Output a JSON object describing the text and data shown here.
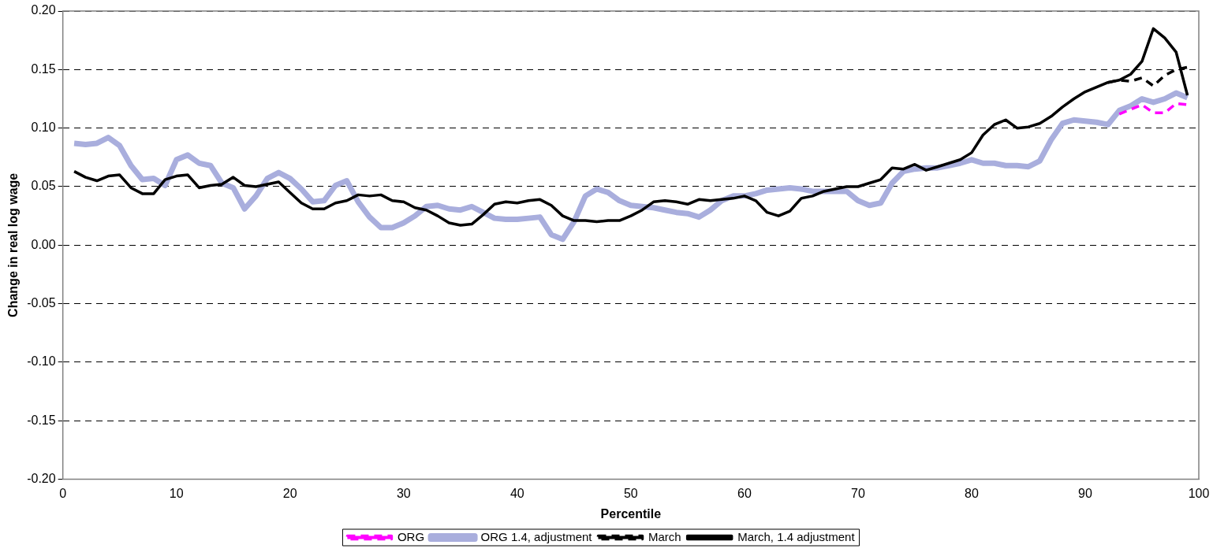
{
  "chart_data": {
    "type": "line",
    "xlabel": "Percentile",
    "ylabel": "Change in real log wage",
    "x": [
      1,
      2,
      3,
      4,
      5,
      6,
      7,
      8,
      9,
      10,
      11,
      12,
      13,
      14,
      15,
      16,
      17,
      18,
      19,
      20,
      21,
      22,
      23,
      24,
      25,
      26,
      27,
      28,
      29,
      30,
      31,
      32,
      33,
      34,
      35,
      36,
      37,
      38,
      39,
      40,
      41,
      42,
      43,
      44,
      45,
      46,
      47,
      48,
      49,
      50,
      51,
      52,
      53,
      54,
      55,
      56,
      57,
      58,
      59,
      60,
      61,
      62,
      63,
      64,
      65,
      66,
      67,
      68,
      69,
      70,
      71,
      72,
      73,
      74,
      75,
      76,
      77,
      78,
      79,
      80,
      81,
      82,
      83,
      84,
      85,
      86,
      87,
      88,
      89,
      90,
      91,
      92,
      93,
      94,
      95,
      96,
      97,
      98,
      99
    ],
    "xlim": [
      0,
      100
    ],
    "xticks": [
      0,
      10,
      20,
      30,
      40,
      50,
      60,
      70,
      80,
      90,
      100
    ],
    "ylim": [
      -0.2,
      0.2
    ],
    "yticks": [
      {
        "value": -0.2,
        "label": "-0.20"
      },
      {
        "value": -0.15,
        "label": "-0.15"
      },
      {
        "value": -0.1,
        "label": "-0.10"
      },
      {
        "value": -0.05,
        "label": "-0.05"
      },
      {
        "value": 0,
        "label": "0.00"
      },
      {
        "value": 0.05,
        "label": "0.05"
      },
      {
        "value": 0.1,
        "label": "0.10"
      },
      {
        "value": 0.15,
        "label": "0.15"
      },
      {
        "value": 0.2,
        "label": "0.20"
      }
    ],
    "grid": "y",
    "legend": "bottom",
    "marker": "none",
    "series": [
      {
        "name": "ORG",
        "color": "#ff00ff",
        "line_style": "dashed",
        "values": [
          null,
          null,
          null,
          null,
          null,
          null,
          null,
          null,
          null,
          null,
          null,
          null,
          null,
          null,
          null,
          null,
          null,
          null,
          null,
          null,
          null,
          null,
          null,
          null,
          null,
          null,
          null,
          null,
          null,
          null,
          null,
          null,
          null,
          null,
          null,
          null,
          null,
          null,
          null,
          null,
          null,
          null,
          null,
          null,
          null,
          null,
          null,
          null,
          null,
          null,
          null,
          null,
          null,
          null,
          null,
          null,
          null,
          null,
          null,
          null,
          null,
          null,
          null,
          null,
          null,
          null,
          null,
          null,
          null,
          null,
          null,
          null,
          null,
          null,
          null,
          null,
          null,
          null,
          null,
          null,
          null,
          null,
          null,
          null,
          null,
          null,
          null,
          null,
          null,
          null,
          null,
          null,
          0.112,
          0.116,
          0.12,
          0.113,
          0.113,
          0.121,
          0.12
        ]
      },
      {
        "name": "ORG 1.4, adjustment",
        "color": "#a9aedd",
        "line_style": "solid",
        "values": [
          0.087,
          0.086,
          0.087,
          0.092,
          0.085,
          0.068,
          0.056,
          0.057,
          0.051,
          0.073,
          0.077,
          0.07,
          0.068,
          0.053,
          0.049,
          0.031,
          0.042,
          0.057,
          0.062,
          0.057,
          0.048,
          0.037,
          0.038,
          0.051,
          0.055,
          0.037,
          0.024,
          0.015,
          0.015,
          0.019,
          0.025,
          0.033,
          0.034,
          0.031,
          0.03,
          0.033,
          0.028,
          0.023,
          0.022,
          0.022,
          0.023,
          0.024,
          0.009,
          0.005,
          0.02,
          0.042,
          0.048,
          0.045,
          0.038,
          0.034,
          0.033,
          0.032,
          0.03,
          0.028,
          0.027,
          0.024,
          0.03,
          0.038,
          0.042,
          0.042,
          0.044,
          0.047,
          0.048,
          0.049,
          0.048,
          0.046,
          0.046,
          0.046,
          0.046,
          0.038,
          0.034,
          0.036,
          0.053,
          0.063,
          0.065,
          0.066,
          0.066,
          0.068,
          0.07,
          0.073,
          0.07,
          0.07,
          0.068,
          0.068,
          0.067,
          0.072,
          0.09,
          0.104,
          0.107,
          0.106,
          0.105,
          0.103,
          0.115,
          0.119,
          0.125,
          0.122,
          0.125,
          0.13,
          0.126
        ]
      },
      {
        "name": "March",
        "color": "#000000",
        "line_style": "dashed",
        "values": [
          null,
          null,
          null,
          null,
          null,
          null,
          null,
          null,
          null,
          null,
          null,
          null,
          null,
          null,
          null,
          null,
          null,
          null,
          null,
          null,
          null,
          null,
          null,
          null,
          null,
          null,
          null,
          null,
          null,
          null,
          null,
          null,
          null,
          null,
          null,
          null,
          null,
          null,
          null,
          null,
          null,
          null,
          null,
          null,
          null,
          null,
          null,
          null,
          null,
          null,
          null,
          null,
          null,
          null,
          null,
          null,
          null,
          null,
          null,
          null,
          null,
          null,
          null,
          null,
          null,
          null,
          null,
          null,
          null,
          null,
          null,
          null,
          null,
          null,
          null,
          null,
          null,
          null,
          null,
          null,
          null,
          null,
          null,
          null,
          null,
          null,
          null,
          null,
          null,
          null,
          null,
          0.139,
          0.141,
          0.14,
          0.143,
          0.136,
          0.145,
          0.15,
          0.152
        ]
      },
      {
        "name": "March, 1.4 adjustment",
        "color": "#000000",
        "line_style": "solid",
        "values": [
          0.063,
          0.058,
          0.055,
          0.059,
          0.06,
          0.049,
          0.044,
          0.044,
          0.056,
          0.059,
          0.06,
          0.049,
          0.051,
          0.052,
          0.058,
          0.051,
          0.05,
          0.052,
          0.054,
          0.045,
          0.036,
          0.031,
          0.031,
          0.036,
          0.038,
          0.043,
          0.042,
          0.043,
          0.038,
          0.037,
          0.032,
          0.03,
          0.025,
          0.019,
          0.017,
          0.018,
          0.026,
          0.035,
          0.037,
          0.036,
          0.038,
          0.039,
          0.034,
          0.025,
          0.021,
          0.021,
          0.02,
          0.021,
          0.021,
          0.025,
          0.03,
          0.037,
          0.038,
          0.037,
          0.035,
          0.039,
          0.038,
          0.039,
          0.04,
          0.042,
          0.038,
          0.028,
          0.025,
          0.029,
          0.04,
          0.042,
          0.046,
          0.048,
          0.05,
          0.05,
          0.053,
          0.056,
          0.066,
          0.065,
          0.069,
          0.064,
          0.067,
          0.07,
          0.073,
          0.079,
          0.094,
          0.103,
          0.107,
          0.1,
          0.101,
          0.104,
          0.11,
          0.118,
          0.125,
          0.131,
          0.135,
          0.139,
          0.141,
          0.146,
          0.157,
          0.185,
          0.177,
          0.165,
          0.128
        ]
      }
    ]
  }
}
